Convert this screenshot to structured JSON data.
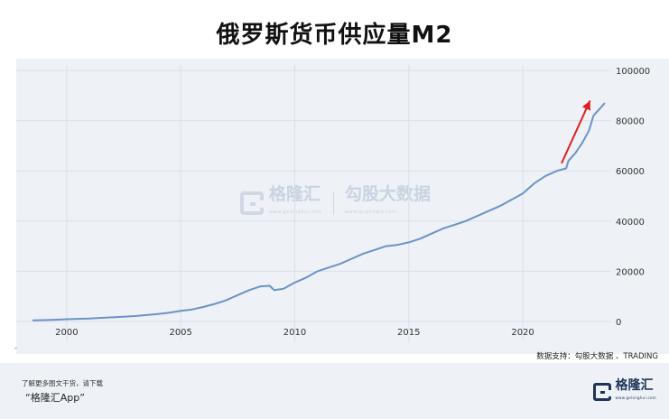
{
  "title": "俄罗斯货币供应量M2",
  "source": "数据支持：勾股大数据 、TRADING",
  "footer": {
    "line1": "了解更多图文干货，请下载",
    "line2": "“格隆汇App”",
    "logo_text": "格隆汇",
    "logo_sub": "www.gelonghui.com"
  },
  "watermark": {
    "brand1": "格隆汇",
    "brand1_sub": "www.gelonghui.com",
    "brand2": "勾股大数据",
    "brand2_sub": "www.gogudata.com"
  },
  "colors": {
    "line": "#6b93c6",
    "arrow": "#e02020",
    "plot_bg": "#eef1f6",
    "grid": "#d9e1ec"
  },
  "chart_data": {
    "type": "line",
    "title": "俄罗斯货币供应量M2",
    "xlabel": "",
    "ylabel": "",
    "x_ticks": [
      "2000",
      "2005",
      "2010",
      "2015",
      "2020"
    ],
    "y_ticks": [
      "0",
      "20000",
      "40000",
      "60000",
      "80000",
      "100000"
    ],
    "xlim": [
      1998.5,
      2023.6
    ],
    "ylim": [
      0,
      100000
    ],
    "grid": true,
    "legend": "none",
    "series": [
      {
        "x": [
          1998.5,
          1999.0,
          1999.5,
          2000.0,
          2000.5,
          2001.0,
          2001.5,
          2002.0,
          2002.5,
          2003.0,
          2003.5,
          2004.0,
          2004.5,
          2005.0,
          2005.5,
          2006.0,
          2006.5,
          2007.0,
          2007.5,
          2008.0,
          2008.5,
          2008.9,
          2009.1,
          2009.5,
          2010.0,
          2010.5,
          2011.0,
          2011.5,
          2012.0,
          2012.5,
          2013.0,
          2013.5,
          2014.0,
          2014.5,
          2015.0,
          2015.5,
          2016.0,
          2016.5,
          2017.0,
          2017.5,
          2018.0,
          2018.5,
          2019.0,
          2019.5,
          2020.0,
          2020.5,
          2021.0,
          2021.5,
          2021.9,
          2022.0,
          2022.3,
          2022.6,
          2022.9,
          2023.1,
          2023.4,
          2023.6
        ],
        "values": [
          450,
          550,
          700,
          900,
          1050,
          1200,
          1450,
          1650,
          1900,
          2150,
          2550,
          3000,
          3500,
          4200,
          4800,
          5800,
          7000,
          8500,
          10500,
          12500,
          14000,
          14200,
          12500,
          13000,
          15500,
          17500,
          20000,
          21500,
          23000,
          25000,
          27000,
          28500,
          30000,
          30500,
          31500,
          33000,
          35000,
          37000,
          38500,
          40000,
          42000,
          44000,
          46000,
          48500,
          51000,
          55000,
          58000,
          60000,
          61000,
          64000,
          67000,
          71000,
          76000,
          82000,
          85000,
          87000
        ]
      }
    ],
    "annotation": "arrow pointing up-right near 2022–2023"
  }
}
